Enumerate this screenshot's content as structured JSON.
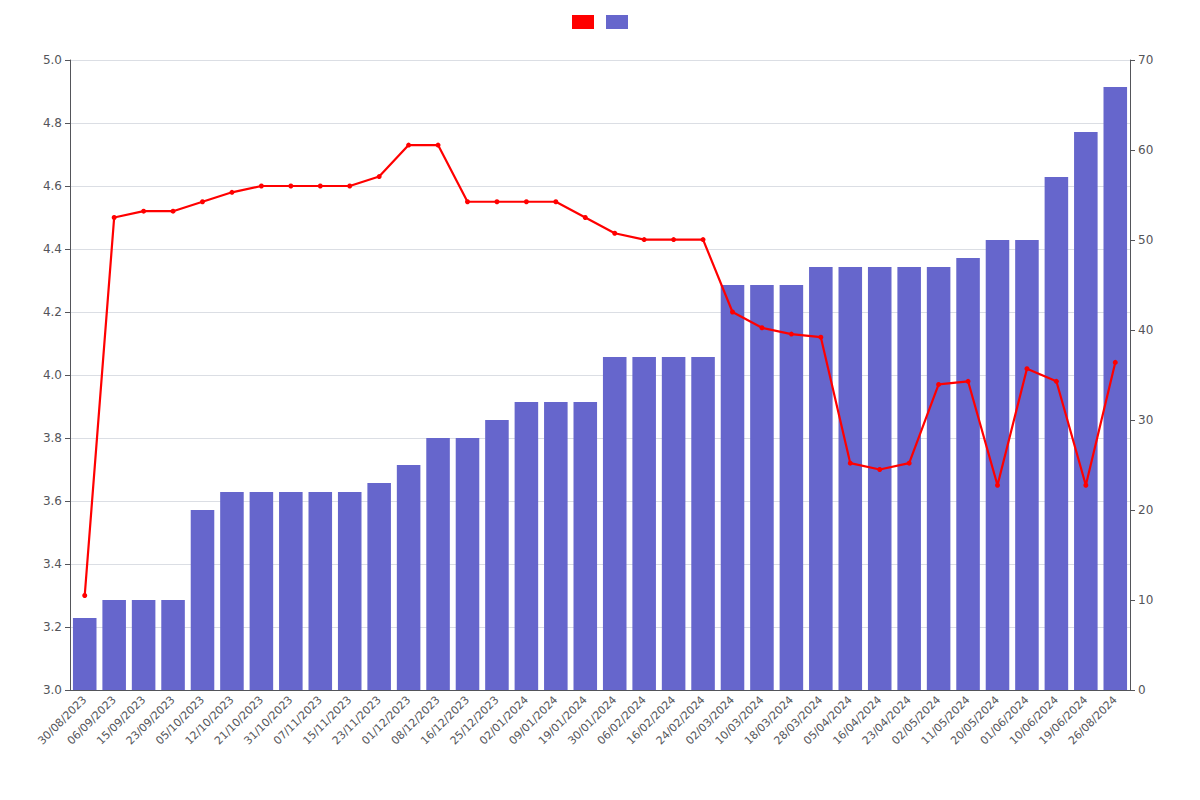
{
  "chart_data": {
    "type": "bar",
    "categories": [
      "30/08/2023",
      "06/09/2023",
      "15/09/2023",
      "23/09/2023",
      "05/10/2023",
      "12/10/2023",
      "21/10/2023",
      "31/10/2023",
      "07/11/2023",
      "15/11/2023",
      "23/11/2023",
      "01/12/2023",
      "08/12/2023",
      "16/12/2023",
      "25/12/2023",
      "02/01/2024",
      "09/01/2024",
      "19/01/2024",
      "30/01/2024",
      "06/02/2024",
      "16/02/2024",
      "24/02/2024",
      "02/03/2024",
      "10/03/2024",
      "18/03/2024",
      "28/03/2024",
      "05/04/2024",
      "16/04/2024",
      "23/04/2024",
      "02/05/2024",
      "11/05/2024",
      "20/05/2024",
      "01/06/2024",
      "10/06/2024",
      "19/06/2024",
      "26/08/2024"
    ],
    "series": [
      {
        "type": "line",
        "color": "#ff0000",
        "marker": "circle",
        "values": [
          3.3,
          4.5,
          4.52,
          4.52,
          4.55,
          4.58,
          4.6,
          4.6,
          4.6,
          4.6,
          4.63,
          4.73,
          4.73,
          4.55,
          4.55,
          4.55,
          4.55,
          4.5,
          4.45,
          4.43,
          4.43,
          4.43,
          4.2,
          4.15,
          4.13,
          4.12,
          3.72,
          3.7,
          3.72,
          3.97,
          3.98,
          3.65,
          4.02,
          3.98,
          3.65,
          4.04
        ]
      },
      {
        "type": "bar",
        "color": "#6666cc",
        "axis": "y2",
        "values": [
          8,
          10,
          10,
          10,
          20,
          22,
          22,
          22,
          22,
          22,
          23,
          25,
          28,
          28,
          30,
          32,
          32,
          32,
          37,
          37,
          37,
          37,
          45,
          45,
          45,
          47,
          47,
          47,
          47,
          47,
          48,
          50,
          50,
          57,
          62,
          67
        ]
      }
    ],
    "ylim": [
      3.0,
      5.0
    ],
    "yticks": [
      {
        "value": 3.0,
        "label": "3.0"
      },
      3.2,
      3.4,
      3.6,
      3.8,
      {
        "value": 4.0,
        "label": "4.0"
      },
      4.2,
      4.4,
      4.6,
      4.8,
      {
        "value": 5.0,
        "label": "5.0"
      }
    ],
    "y2lim": [
      0,
      70
    ],
    "y2ticks": [
      0,
      10,
      20,
      30,
      40,
      50,
      60,
      70
    ],
    "grid": true,
    "legend": "top"
  }
}
